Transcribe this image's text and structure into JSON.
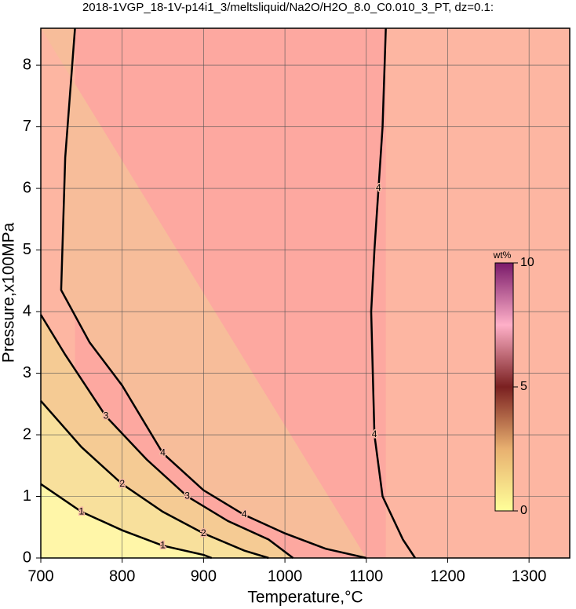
{
  "chart_data": {
    "type": "contour",
    "title": "2018-1VGP_18-1V-p14i1_3/meltsliquid/Na2O/H2O_8.0_C0.010_3_PT, dz=0.1:",
    "x_label": "Temperature,°C",
    "y_label": "Pressure,x100MPa",
    "xlim": [
      700,
      1350
    ],
    "xticks": [
      700,
      800,
      900,
      1000,
      1100,
      1200,
      1300
    ],
    "ylim": [
      0,
      8.6
    ],
    "yticks": [
      0,
      1,
      2,
      3,
      4,
      5,
      6,
      7,
      8
    ],
    "grid": true,
    "contours": [
      {
        "level": 1,
        "x": [
          700,
          750,
          800,
          850,
          900,
          910
        ],
        "y": [
          1.2,
          0.75,
          0.45,
          0.2,
          0.05,
          0
        ]
      },
      {
        "level": 2,
        "x": [
          700,
          750,
          800,
          850,
          900,
          950,
          980
        ],
        "y": [
          2.55,
          1.8,
          1.2,
          0.75,
          0.4,
          0.12,
          0
        ]
      },
      {
        "level": 3,
        "x": [
          700,
          730,
          780,
          830,
          880,
          930,
          980,
          1010
        ],
        "y": [
          3.95,
          3.3,
          2.3,
          1.6,
          1.0,
          0.6,
          0.3,
          0
        ]
      },
      {
        "level": 4,
        "x": [
          742,
          730,
          725,
          760,
          800,
          850,
          900,
          950,
          1000,
          1050,
          1100
        ],
        "y": [
          8.6,
          6.5,
          4.35,
          3.5,
          2.8,
          1.7,
          1.1,
          0.7,
          0.4,
          0.15,
          0
        ]
      },
      {
        "level": 4,
        "x": [
          1124,
          1120,
          1115,
          1110,
          1106,
          1108,
          1110,
          1120,
          1145,
          1160
        ],
        "y": [
          8.6,
          7,
          6,
          5,
          4,
          3,
          2,
          1,
          0.3,
          0
        ]
      }
    ],
    "colorbar": {
      "label": "wt%",
      "lim": [
        0,
        10
      ],
      "ticks": [
        0,
        5,
        10
      ]
    }
  }
}
